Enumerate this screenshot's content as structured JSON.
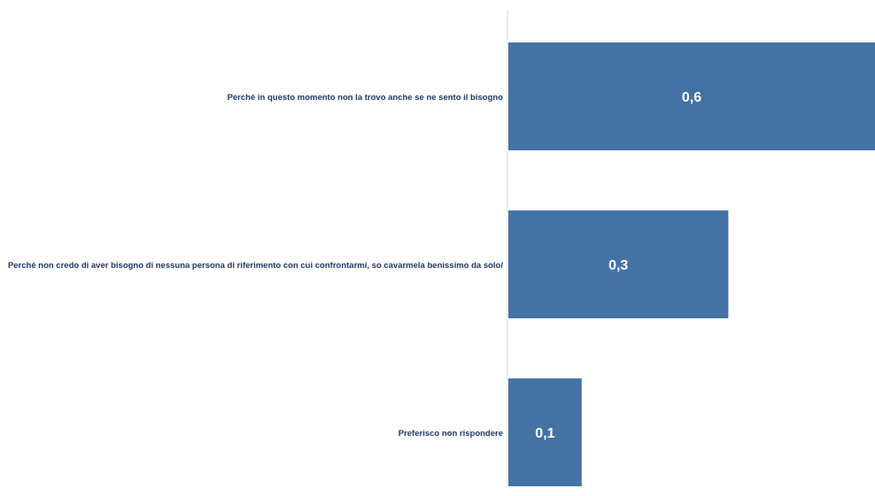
{
  "chart_data": {
    "type": "bar",
    "orientation": "horizontal",
    "categories": [
      "Perché in questo momento non la trovo anche se ne sento il bisogno",
      "Perché non credo di aver bisogno di nessuna persona di riferimento con cui confrontarmi, so cavarmela benissimo da solo/",
      "Preferisco non rispondere"
    ],
    "values": [
      0.6,
      0.3,
      0.1
    ],
    "data_labels": [
      "0,6",
      "0,3",
      "0,1"
    ],
    "xlim": [
      0,
      0.5
    ],
    "bar_color": "#4472a4",
    "label_color": "#1f3763",
    "data_label_color": "#ffffff",
    "grid": false,
    "legend": "none"
  }
}
